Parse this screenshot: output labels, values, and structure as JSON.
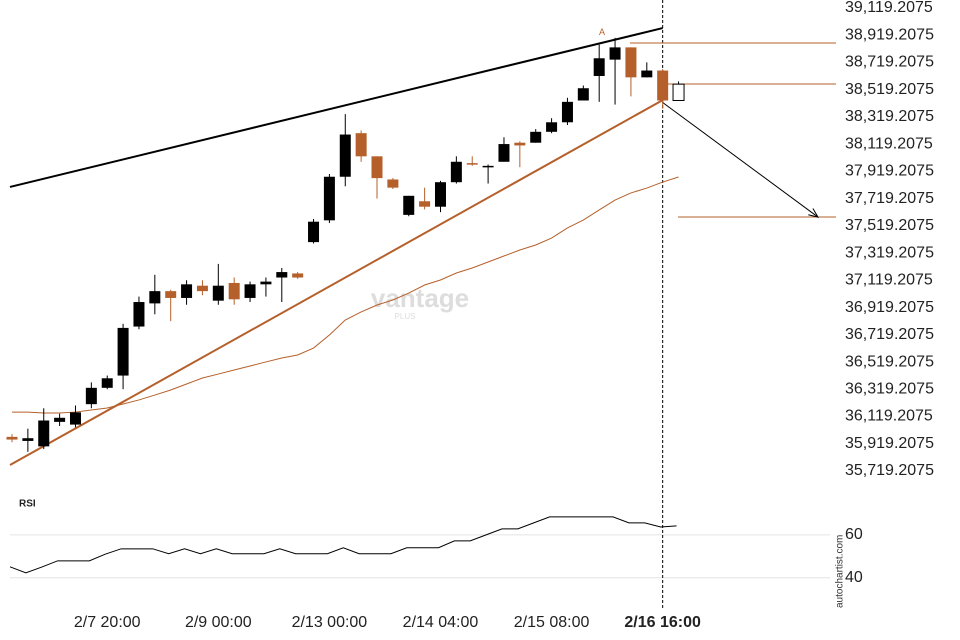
{
  "chart_data": [
    {
      "type": "candlestick",
      "categories": [
        null,
        null,
        null,
        null,
        null,
        null,
        "2/7 20:00",
        null,
        null,
        null,
        null,
        null,
        null,
        "2/9 00:00",
        null,
        null,
        null,
        null,
        null,
        null,
        "2/13 00:00",
        null,
        null,
        null,
        null,
        null,
        null,
        "2/14 04:00",
        null,
        null,
        null,
        null,
        null,
        null,
        "2/15 08:00",
        null,
        null,
        null,
        null,
        null,
        null,
        "2/16 16:00",
        null
      ],
      "open": [
        35970,
        35940,
        35900,
        36080,
        36060,
        36210,
        36330,
        36420,
        36780,
        36950,
        37040,
        36990,
        37080,
        36970,
        37100,
        36990,
        37090,
        37140,
        37170,
        37400,
        37560,
        37880,
        38200,
        38030,
        37860,
        37600,
        37700,
        37660,
        37840,
        37980,
        37950,
        37990,
        38130,
        38130,
        38210,
        38280,
        38440,
        38620,
        38740,
        38830,
        38610,
        38660,
        38440
      ],
      "high": [
        35990,
        36030,
        36180,
        36140,
        36200,
        36370,
        36420,
        36800,
        37000,
        37160,
        37050,
        37120,
        37120,
        37240,
        37140,
        37110,
        37140,
        37210,
        37180,
        37570,
        37900,
        38340,
        38220,
        38030,
        37870,
        37740,
        37800,
        37850,
        38030,
        38030,
        37970,
        38170,
        38140,
        38230,
        38310,
        38460,
        38550,
        38850,
        38900,
        38830,
        38720,
        38670,
        38580
      ],
      "low": [
        35930,
        35860,
        35880,
        36050,
        36040,
        36180,
        36320,
        36320,
        36760,
        36870,
        36820,
        36940,
        37010,
        36940,
        36940,
        36960,
        37000,
        36960,
        37130,
        37390,
        37540,
        37810,
        37990,
        37720,
        37790,
        37590,
        37640,
        37620,
        37830,
        37960,
        37830,
        37990,
        37950,
        38130,
        38200,
        38260,
        38440,
        38430,
        38410,
        38470,
        38610,
        38380,
        38440
      ],
      "close": [
        35950,
        35960,
        36090,
        36110,
        36150,
        36330,
        36400,
        36770,
        36960,
        37040,
        36990,
        37090,
        37040,
        37080,
        36980,
        37090,
        37110,
        37180,
        37140,
        37550,
        37880,
        38190,
        38030,
        37870,
        37800,
        37740,
        37660,
        37840,
        37990,
        37970,
        37960,
        38120,
        38110,
        38210,
        38280,
        38430,
        38530,
        38750,
        38830,
        38610,
        38660,
        38440,
        38560
      ],
      "up_color": "#000000",
      "down_color": "#b5602a",
      "last_forming": true,
      "moving_average": {
        "color": "#b5602a",
        "values": [
          36152,
          36152,
          36145,
          36145,
          36152,
          36167,
          36182,
          36211,
          36241,
          36277,
          36314,
          36358,
          36402,
          36431,
          36461,
          36490,
          36520,
          36549,
          36571,
          36622,
          36718,
          36828,
          36887,
          36938,
          36975,
          37026,
          37085,
          37122,
          37173,
          37210,
          37254,
          37298,
          37342,
          37379,
          37430,
          37504,
          37562,
          37636,
          37709,
          37761,
          37797,
          37841,
          37878
        ]
      },
      "resistance": {
        "color": "#000000",
        "x": [
          0,
          41
        ],
        "values": [
          37805,
          38972
        ]
      },
      "support": {
        "color": "#b5602a",
        "x": [
          0,
          41
        ],
        "values": [
          35763,
          38443
        ]
      },
      "levels": [
        38862,
        38561,
        37584
      ],
      "level_color": "#b5602a",
      "point_label": "A",
      "watermark": "vantage",
      "watermark_sub": "PLUS",
      "credit": "autochartist.com",
      "ylim": [
        35719.2075,
        39119.2075
      ],
      "yticks": [
        {
          "value": 35719.2075,
          "label": "35,719.2075"
        },
        {
          "value": 35919.2075,
          "label": "35,919.2075"
        },
        {
          "value": 36119.2075,
          "label": "36,119.2075"
        },
        {
          "value": 36319.2075,
          "label": "36,319.2075"
        },
        {
          "value": 36519.2075,
          "label": "36,519.2075"
        },
        {
          "value": 36719.2075,
          "label": "36,719.2075"
        },
        {
          "value": 36919.2075,
          "label": "36,919.2075"
        },
        {
          "value": 37119.2075,
          "label": "37,119.2075"
        },
        {
          "value": 37319.2075,
          "label": "37,319.2075"
        },
        {
          "value": 37519.2075,
          "label": "37,519.2075"
        },
        {
          "value": 37719.2075,
          "label": "37,719.2075"
        },
        {
          "value": 37919.2075,
          "label": "37,919.2075"
        },
        {
          "value": 38119.2075,
          "label": "38,119.2075"
        },
        {
          "value": 38319.2075,
          "label": "38,319.2075"
        },
        {
          "value": 38519.2075,
          "label": "38,519.2075"
        },
        {
          "value": 38719.2075,
          "label": "38,719.2075"
        },
        {
          "value": 38919.2075,
          "label": "38,919.2075"
        },
        {
          "value": 39119.2075,
          "label": "39,119.2075"
        }
      ],
      "grid": false
    },
    {
      "type": "line",
      "title": "RSI",
      "color": "#000000",
      "values": [
        45.1,
        42.3,
        45,
        47.9,
        47.9,
        47.9,
        51,
        53.5,
        53.5,
        53.5,
        51.2,
        53.5,
        51.2,
        53.5,
        51.2,
        51.2,
        51.2,
        53.5,
        51.2,
        51.2,
        51.2,
        54,
        51.2,
        51.2,
        51.2,
        54,
        54,
        54,
        57.2,
        57.2,
        60,
        62.8,
        62.8,
        65.6,
        68.4,
        68.4,
        68.4,
        68.4,
        68.4,
        65.6,
        65.6,
        63.7,
        64.2
      ],
      "ylim": [
        24.5,
        82
      ],
      "yticks": [
        40,
        60
      ],
      "grid": true
    }
  ]
}
